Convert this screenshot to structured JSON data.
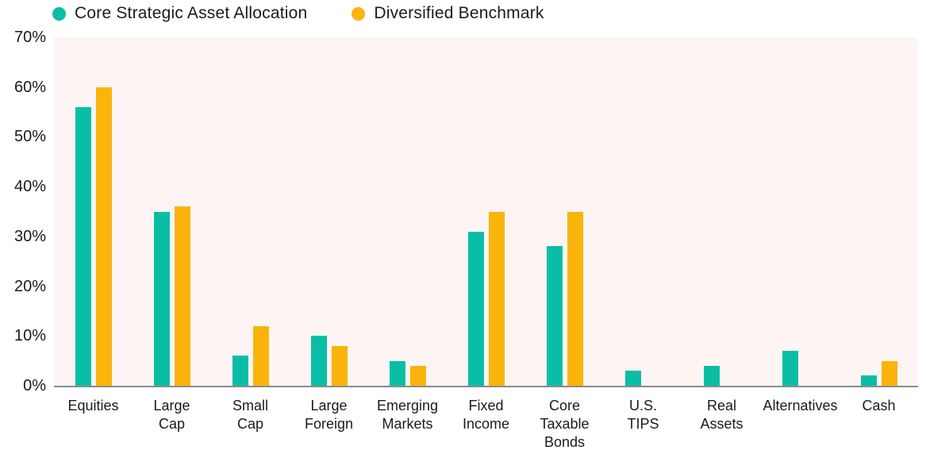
{
  "chart_data": {
    "type": "bar",
    "title": "",
    "xlabel": "",
    "ylabel": "",
    "ylim": [
      0,
      70
    ],
    "grid": false,
    "legend_position": "top",
    "plot_background": "#fcf5f4",
    "axis_line_color": "#8c8c8c",
    "text_color": "#1b1b1b",
    "categories": [
      "Equities",
      "Large Cap",
      "Small Cap",
      "Large Foreign",
      "Emerging Markets",
      "Fixed Income",
      "Core Taxable Bonds",
      "U.S. TIPS",
      "Real Assets",
      "Alternatives",
      "Cash"
    ],
    "categories_display": [
      "Equities",
      "Large\nCap",
      "Small\nCap",
      "Large\nForeign",
      "Emerging\nMarkets",
      "Fixed\nIncome",
      "Core\nTaxable\nBonds",
      "U.S.\nTIPS",
      "Real\nAssets",
      "Alternatives",
      "Cash"
    ],
    "series": [
      {
        "name": "Core Strategic Asset Allocation",
        "color": "#0abea5",
        "values": [
          56,
          35,
          6,
          10,
          5,
          31,
          28,
          3,
          4,
          7,
          2
        ]
      },
      {
        "name": "Diversified Benchmark",
        "color": "#fbb40b",
        "values": [
          60,
          36,
          12,
          8,
          4,
          35,
          35,
          0,
          0,
          0,
          5
        ]
      }
    ],
    "yticks": [
      {
        "value": 70,
        "label": "70%"
      },
      {
        "value": 60,
        "label": "60%"
      },
      {
        "value": 50,
        "label": "50%"
      },
      {
        "value": 40,
        "label": "40%"
      },
      {
        "value": 30,
        "label": "30%"
      },
      {
        "value": 20,
        "label": "20%"
      },
      {
        "value": 10,
        "label": "10%"
      },
      {
        "value": 0,
        "label": "0%"
      }
    ]
  }
}
